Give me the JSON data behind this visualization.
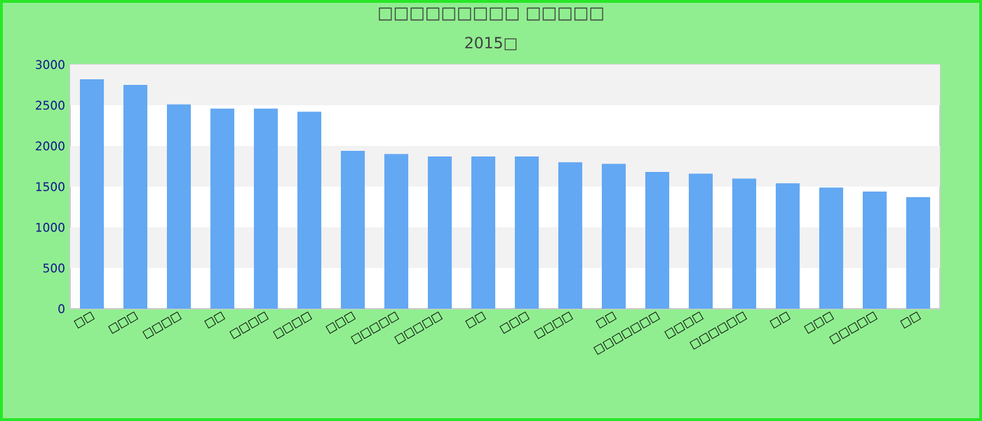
{
  "chart_data": {
    "type": "bar",
    "title": "□□□□□□□□□ □□□□□",
    "subtitle": "2015□",
    "categories": [
      "□□",
      "□□□",
      "□□□□",
      "□□",
      "□□□□",
      "□□□□",
      "□□□",
      "□□□□□",
      "□□□□□",
      "□□",
      "□□□",
      "□□□□",
      "□□",
      "□□□□□□□",
      "□□□□",
      "□□□□□□",
      "□□",
      "□□□",
      "□□□□□",
      "□□"
    ],
    "values": [
      2820,
      2750,
      2510,
      2460,
      2460,
      2420,
      1940,
      1900,
      1870,
      1870,
      1870,
      1800,
      1780,
      1680,
      1660,
      1600,
      1540,
      1490,
      1440,
      1370
    ],
    "color": "#63a8f3",
    "ylim": [
      0,
      3000
    ],
    "yticks": [
      0,
      500,
      1000,
      1500,
      2000,
      2500,
      3000
    ],
    "bands": [
      {
        "axis": "y",
        "from": 500,
        "to": 1000,
        "color": "#f2f2f2"
      },
      {
        "axis": "y",
        "from": 1500,
        "to": 2000,
        "color": "#f2f2f2"
      },
      {
        "axis": "y",
        "from": 2500,
        "to": 3000,
        "color": "#f2f2f2"
      }
    ]
  }
}
